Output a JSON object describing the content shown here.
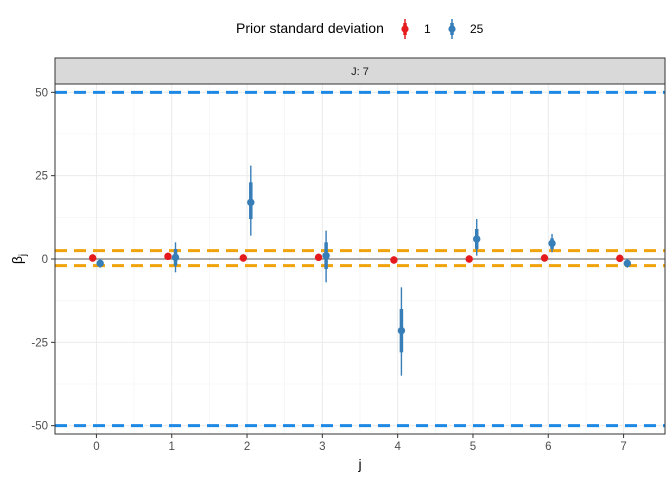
{
  "chart_data": {
    "type": "scatter",
    "facet_label": "J: 7",
    "legend": {
      "title": "Prior standard deviation",
      "placement": "top",
      "entries": [
        {
          "name": "1",
          "color": "#e41a1c"
        },
        {
          "name": "25",
          "color": "#377eb8"
        }
      ]
    },
    "xlabel": "j",
    "ylabel": "β",
    "ylabel_subscript": "j",
    "xlim": [
      -0.55,
      7.55
    ],
    "ylim": [
      -52.5,
      52.5
    ],
    "x_ticks": [
      "0",
      "1",
      "2",
      "3",
      "4",
      "5",
      "6",
      "7"
    ],
    "y_ticks": [
      "-50",
      "-25",
      "0",
      "25",
      "50"
    ],
    "y_tick_values": [
      -50,
      -25,
      0,
      25,
      50
    ],
    "grid": true,
    "reference_lines": [
      {
        "y": 50,
        "color": "#1e88e5",
        "style": "dashed"
      },
      {
        "y": -50,
        "color": "#1e88e5",
        "style": "dashed"
      },
      {
        "y": 2.5,
        "color": "#f0a30a",
        "style": "dashed"
      },
      {
        "y": -2,
        "color": "#f0a30a",
        "style": "dashed"
      },
      {
        "y": 0,
        "color": "#555555",
        "style": "solid"
      }
    ],
    "series": [
      {
        "name": "1",
        "color": "#e41a1c",
        "dodge": -0.05,
        "points": [
          {
            "x": 0,
            "y": 0.3,
            "lo": -0.4,
            "hi": 1.0,
            "lo_outer": -0.8,
            "hi_outer": 1.4
          },
          {
            "x": 1,
            "y": 0.8,
            "lo": 0.1,
            "hi": 1.5,
            "lo_outer": -0.3,
            "hi_outer": 1.9
          },
          {
            "x": 2,
            "y": 0.3,
            "lo": -0.4,
            "hi": 1.0,
            "lo_outer": -0.8,
            "hi_outer": 1.4
          },
          {
            "x": 3,
            "y": 0.5,
            "lo": -0.2,
            "hi": 1.2,
            "lo_outer": -0.6,
            "hi_outer": 1.6
          },
          {
            "x": 4,
            "y": -0.3,
            "lo": -1.0,
            "hi": 0.4,
            "lo_outer": -1.4,
            "hi_outer": 0.8
          },
          {
            "x": 5,
            "y": 0.0,
            "lo": -0.7,
            "hi": 0.7,
            "lo_outer": -1.1,
            "hi_outer": 1.1
          },
          {
            "x": 6,
            "y": 0.3,
            "lo": -0.4,
            "hi": 1.0,
            "lo_outer": -0.8,
            "hi_outer": 1.4
          },
          {
            "x": 7,
            "y": 0.2,
            "lo": -0.5,
            "hi": 0.9,
            "lo_outer": -0.9,
            "hi_outer": 1.3
          }
        ]
      },
      {
        "name": "25",
        "color": "#377eb8",
        "dodge": 0.05,
        "points": [
          {
            "x": 0,
            "y": -1.3,
            "lo": -2.1,
            "hi": -0.5,
            "lo_outer": -2.6,
            "hi_outer": 0.0
          },
          {
            "x": 1,
            "y": 0.5,
            "lo": -2.0,
            "hi": 3.0,
            "lo_outer": -4.0,
            "hi_outer": 5.0
          },
          {
            "x": 2,
            "y": 17.0,
            "lo": 12.0,
            "hi": 23.0,
            "lo_outer": 7.0,
            "hi_outer": 28.0
          },
          {
            "x": 3,
            "y": 1.0,
            "lo": -3.0,
            "hi": 5.0,
            "lo_outer": -7.0,
            "hi_outer": 8.5
          },
          {
            "x": 4,
            "y": -21.5,
            "lo": -28.0,
            "hi": -15.0,
            "lo_outer": -35.0,
            "hi_outer": -8.5
          },
          {
            "x": 5,
            "y": 6.0,
            "lo": 3.0,
            "hi": 9.0,
            "lo_outer": 1.0,
            "hi_outer": 12.0
          },
          {
            "x": 6,
            "y": 4.7,
            "lo": 3.0,
            "hi": 6.2,
            "lo_outer": 2.0,
            "hi_outer": 7.5
          },
          {
            "x": 7,
            "y": -1.3,
            "lo": -2.1,
            "hi": -0.5,
            "lo_outer": -2.6,
            "hi_outer": 0.0
          }
        ]
      }
    ]
  }
}
